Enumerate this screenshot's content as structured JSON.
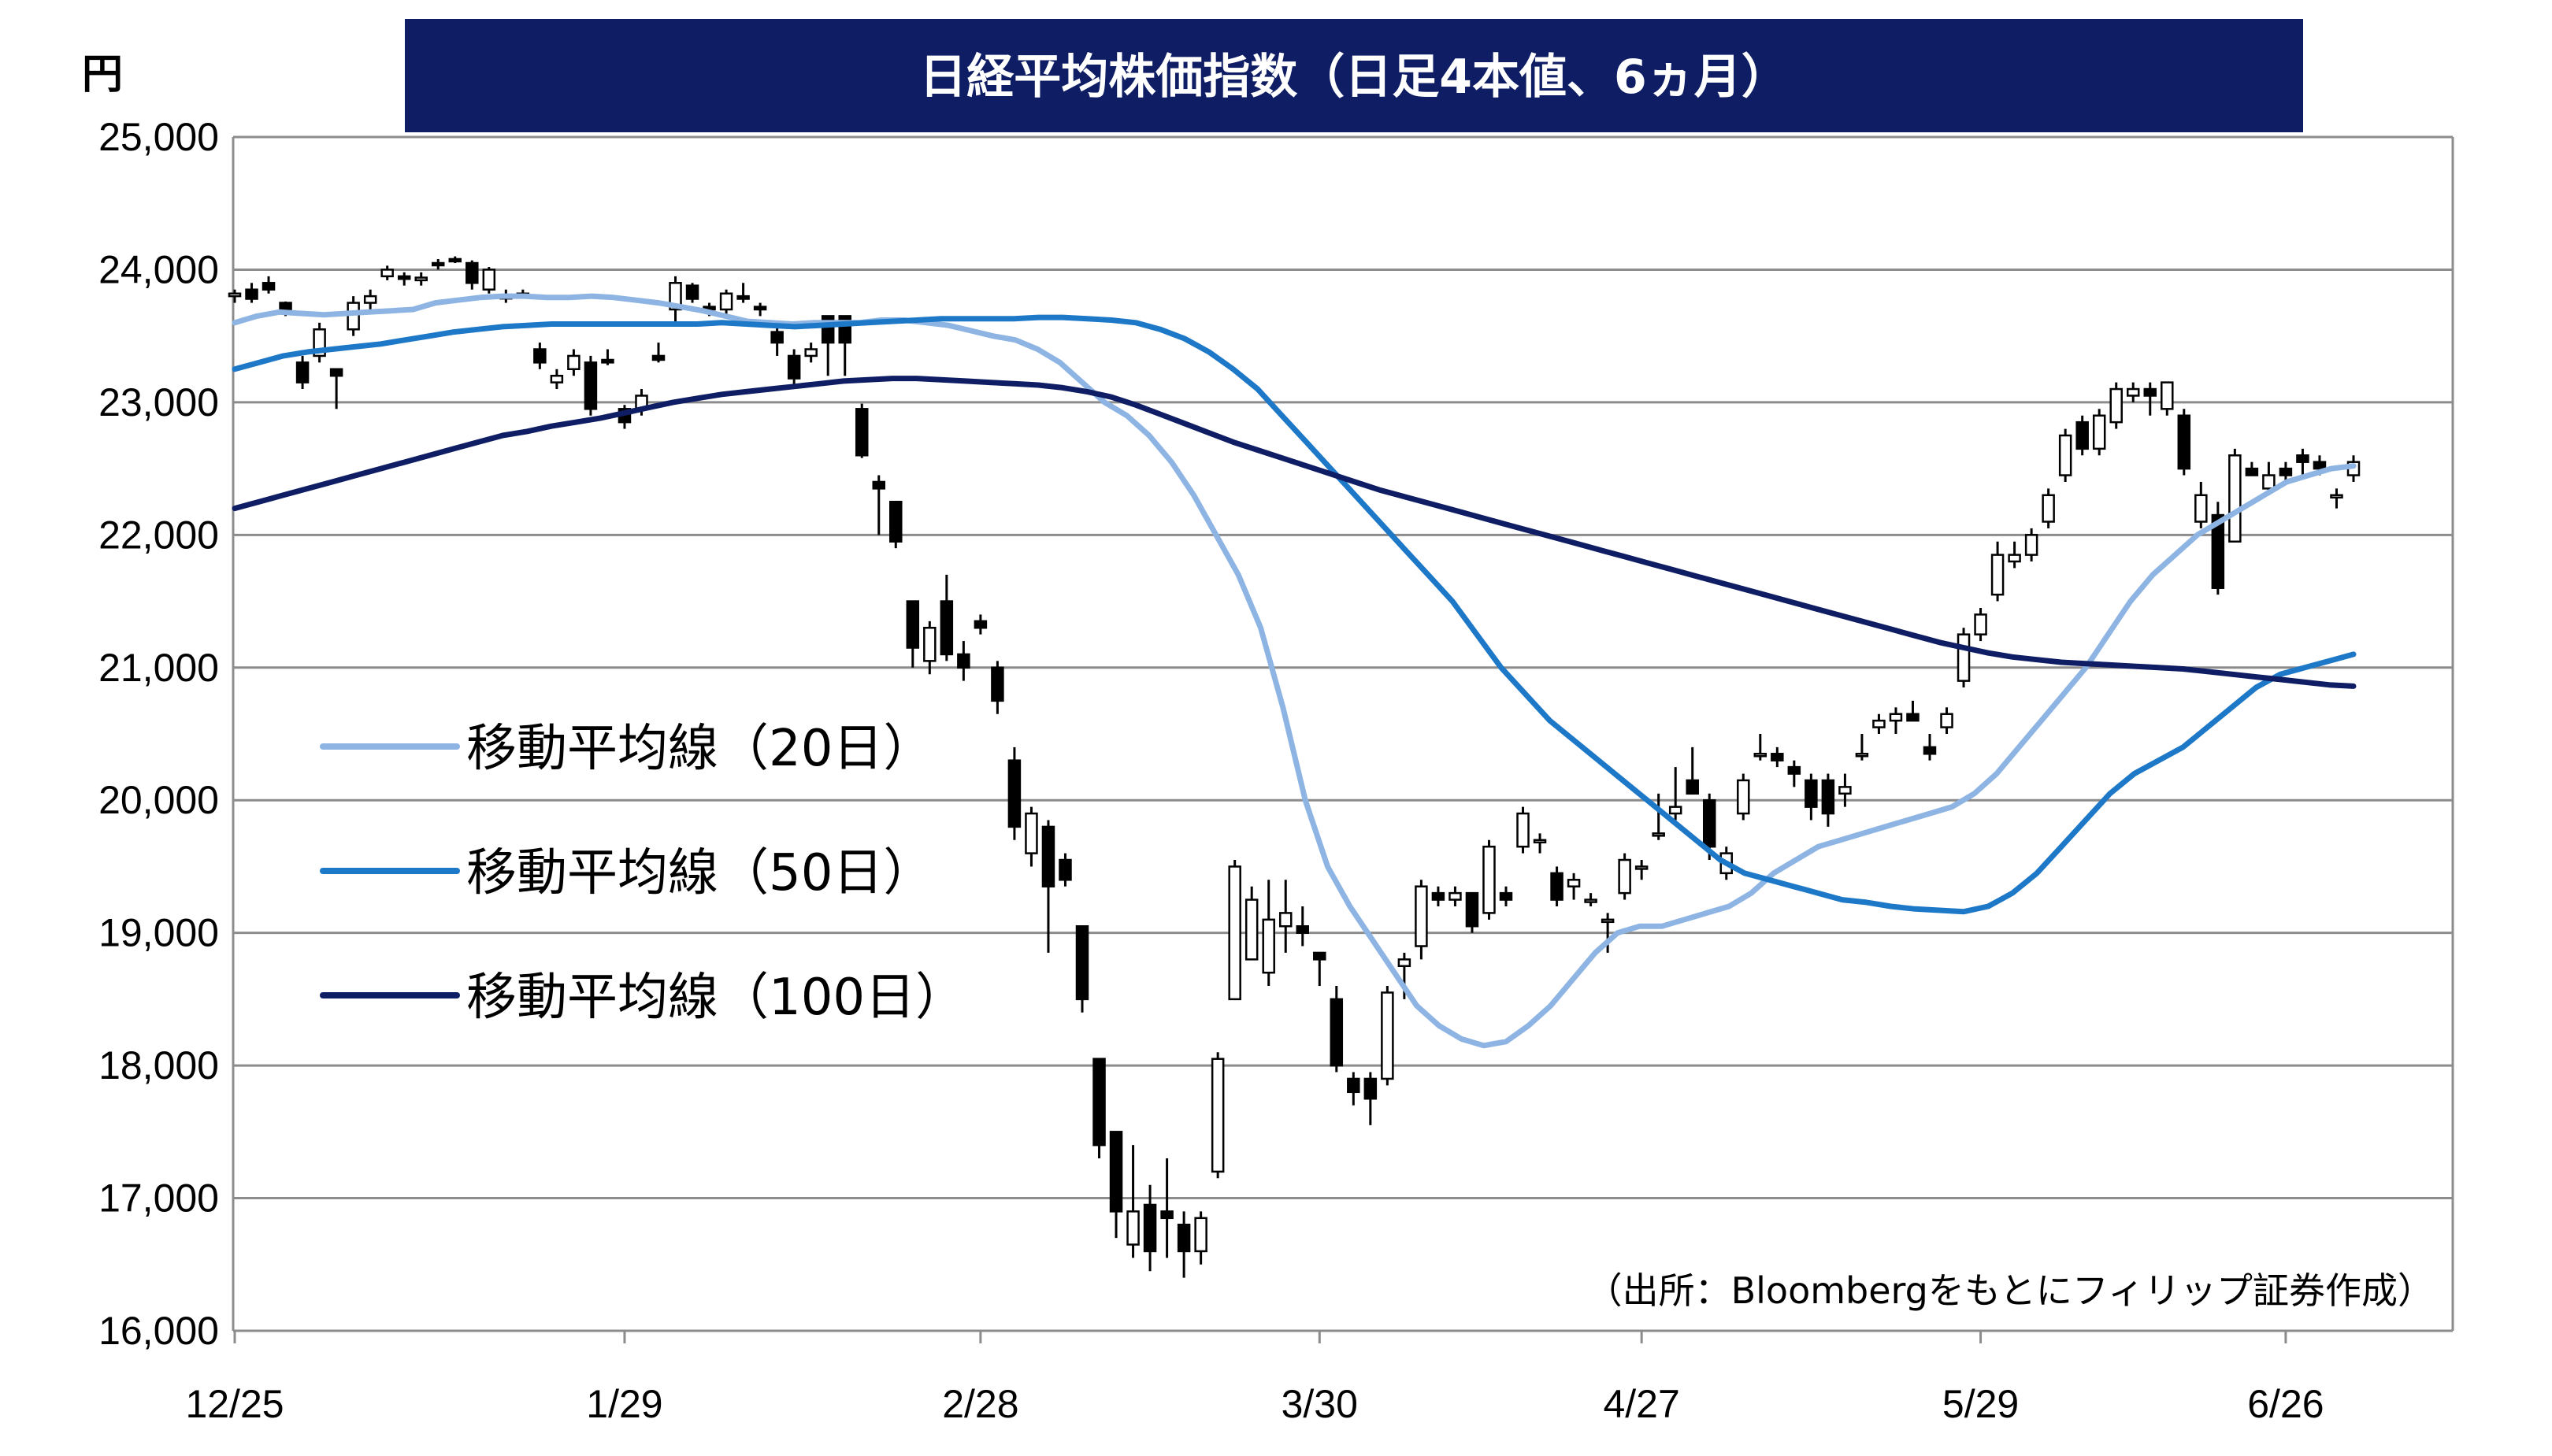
{
  "chart_data": {
    "type": "candlestick",
    "title": "日経平均株価指数（日足4本値、6ヵ月）",
    "unit_label": "円",
    "source": "（出所：Bloombergをもとにフィリップ証券作成）",
    "ylim": [
      16000,
      25000
    ],
    "y_ticks": [
      "25,000",
      "24,000",
      "23,000",
      "22,000",
      "21,000",
      "20,000",
      "19,000",
      "18,000",
      "17,000",
      "16,000"
    ],
    "y_tick_values": [
      25000,
      24000,
      23000,
      22000,
      21000,
      20000,
      19000,
      18000,
      17000,
      16000
    ],
    "x_ticks": [
      "12/25",
      "1/29",
      "2/28",
      "3/30",
      "4/27",
      "5/29",
      "6/26"
    ],
    "x_tick_index": [
      0,
      23,
      44,
      64,
      83,
      103,
      121
    ],
    "grid": true,
    "candle_colors": {
      "up": "#ffffff",
      "down": "#000000",
      "outline": "#000000"
    },
    "candles": [
      [
        23800,
        23850,
        23750,
        23820
      ],
      [
        23850,
        23900,
        23750,
        23780
      ],
      [
        23900,
        23950,
        23820,
        23850
      ],
      [
        23750,
        23760,
        23650,
        23700
      ],
      [
        23300,
        23350,
        23100,
        23150
      ],
      [
        23350,
        23600,
        23300,
        23550
      ],
      [
        23250,
        23250,
        22950,
        23200
      ],
      [
        23550,
        23800,
        23500,
        23750
      ],
      [
        23750,
        23850,
        23700,
        23800
      ],
      [
        23950,
        24030,
        23920,
        24000
      ],
      [
        23950,
        23980,
        23880,
        23930
      ],
      [
        23920,
        23980,
        23880,
        23940
      ],
      [
        24050,
        24080,
        24000,
        24040
      ],
      [
        24080,
        24100,
        24050,
        24070
      ],
      [
        24050,
        24070,
        23850,
        23900
      ],
      [
        23850,
        24020,
        23820,
        24000
      ],
      [
        23800,
        23850,
        23750,
        23800
      ],
      [
        23820,
        23850,
        23780,
        23810
      ],
      [
        23400,
        23450,
        23250,
        23300
      ],
      [
        23150,
        23250,
        23100,
        23200
      ],
      [
        23250,
        23400,
        23200,
        23350
      ],
      [
        23300,
        23350,
        22900,
        22950
      ],
      [
        23320,
        23400,
        23280,
        23300
      ],
      [
        22950,
        22980,
        22800,
        22850
      ],
      [
        22950,
        23100,
        22900,
        23050
      ],
      [
        23350,
        23450,
        23300,
        23320
      ],
      [
        23700,
        23950,
        23600,
        23900
      ],
      [
        23880,
        23900,
        23750,
        23780
      ],
      [
        23720,
        23750,
        23650,
        23700
      ],
      [
        23700,
        23850,
        23650,
        23820
      ],
      [
        23800,
        23900,
        23750,
        23780
      ],
      [
        23720,
        23750,
        23650,
        23700
      ],
      [
        23530,
        23600,
        23350,
        23450
      ],
      [
        23350,
        23400,
        23100,
        23180
      ],
      [
        23350,
        23450,
        23300,
        23400
      ],
      [
        23650,
        23650,
        23200,
        23450
      ],
      [
        23650,
        23650,
        23200,
        23450
      ],
      [
        22950,
        22990,
        22580,
        22600
      ],
      [
        22400,
        22450,
        22000,
        22350
      ],
      [
        22250,
        22250,
        21900,
        21950
      ],
      [
        21500,
        21500,
        21000,
        21150
      ],
      [
        21050,
        21350,
        20950,
        21300
      ],
      [
        21500,
        21700,
        21050,
        21100
      ],
      [
        21100,
        21200,
        20900,
        21000
      ],
      [
        21350,
        21400,
        21250,
        21300
      ],
      [
        21000,
        21050,
        20650,
        20750
      ],
      [
        20300,
        20400,
        19700,
        19800
      ],
      [
        19600,
        19950,
        19500,
        19900
      ],
      [
        19800,
        19850,
        18850,
        19350
      ],
      [
        19550,
        19600,
        19350,
        19400
      ],
      [
        19050,
        19050,
        18400,
        18500
      ],
      [
        18050,
        18050,
        17300,
        17400
      ],
      [
        17500,
        17500,
        16700,
        16900
      ],
      [
        16650,
        17400,
        16550,
        16900
      ],
      [
        16950,
        17100,
        16450,
        16600
      ],
      [
        16900,
        17300,
        16550,
        16850
      ],
      [
        16800,
        16900,
        16400,
        16600
      ],
      [
        16600,
        16900,
        16500,
        16850
      ],
      [
        17200,
        18100,
        17150,
        18050
      ],
      [
        18500,
        19550,
        18500,
        19500
      ],
      [
        18800,
        19350,
        18800,
        19250
      ],
      [
        18700,
        19400,
        18600,
        19100
      ],
      [
        19050,
        19400,
        18850,
        19150
      ],
      [
        19050,
        19200,
        18900,
        19000
      ],
      [
        18850,
        18850,
        18600,
        18800
      ],
      [
        18500,
        18600,
        17950,
        18000
      ],
      [
        17900,
        17950,
        17700,
        17800
      ],
      [
        17900,
        17950,
        17550,
        17750
      ],
      [
        17900,
        18600,
        17850,
        18550
      ],
      [
        18750,
        18850,
        18500,
        18800
      ],
      [
        18900,
        19400,
        18800,
        19350
      ],
      [
        19300,
        19350,
        19200,
        19250
      ],
      [
        19250,
        19350,
        19200,
        19300
      ],
      [
        19300,
        19300,
        19000,
        19050
      ],
      [
        19150,
        19700,
        19100,
        19650
      ],
      [
        19300,
        19350,
        19200,
        19250
      ],
      [
        19650,
        19950,
        19600,
        19900
      ],
      [
        19700,
        19750,
        19600,
        19700
      ],
      [
        19450,
        19500,
        19200,
        19250
      ],
      [
        19350,
        19450,
        19250,
        19400
      ],
      [
        19250,
        19300,
        19200,
        19250
      ],
      [
        19100,
        19150,
        18850,
        19100
      ],
      [
        19300,
        19600,
        19250,
        19550
      ],
      [
        19500,
        19550,
        19400,
        19500
      ],
      [
        19750,
        20050,
        19700,
        19750
      ],
      [
        19900,
        20250,
        19850,
        19950
      ],
      [
        20150,
        20400,
        20100,
        20050
      ],
      [
        20000,
        20050,
        19550,
        19650
      ],
      [
        19450,
        19650,
        19400,
        19600
      ],
      [
        19900,
        20200,
        19850,
        20150
      ],
      [
        20350,
        20500,
        20300,
        20350
      ],
      [
        20350,
        20400,
        20250,
        20300
      ],
      [
        20250,
        20300,
        20100,
        20200
      ],
      [
        20150,
        20200,
        19850,
        19950
      ],
      [
        20150,
        20200,
        19800,
        19900
      ],
      [
        20050,
        20200,
        19950,
        20100
      ],
      [
        20350,
        20500,
        20300,
        20350
      ],
      [
        20550,
        20650,
        20500,
        20600
      ],
      [
        20600,
        20700,
        20500,
        20650
      ],
      [
        20650,
        20750,
        20600,
        20600
      ],
      [
        20400,
        20500,
        20300,
        20350
      ],
      [
        20550,
        20700,
        20500,
        20650
      ],
      [
        20900,
        21300,
        20850,
        21250
      ],
      [
        21250,
        21450,
        21200,
        21400
      ],
      [
        21550,
        21950,
        21500,
        21850
      ],
      [
        21800,
        21950,
        21750,
        21850
      ],
      [
        21850,
        22050,
        21800,
        22000
      ],
      [
        22100,
        22350,
        22050,
        22300
      ],
      [
        22450,
        22800,
        22400,
        22750
      ],
      [
        22850,
        22900,
        22600,
        22650
      ],
      [
        22650,
        22950,
        22600,
        22900
      ],
      [
        22850,
        23150,
        22800,
        23100
      ],
      [
        23050,
        23150,
        23000,
        23100
      ],
      [
        23100,
        23150,
        22900,
        23050
      ],
      [
        22950,
        23150,
        22900,
        23150
      ],
      [
        22900,
        22950,
        22450,
        22500
      ],
      [
        22100,
        22400,
        22050,
        22300
      ],
      [
        22150,
        22250,
        21550,
        21600
      ],
      [
        21950,
        22650,
        21950,
        22600
      ],
      [
        22500,
        22550,
        22450,
        22450
      ],
      [
        22350,
        22550,
        22300,
        22450
      ],
      [
        22500,
        22550,
        22400,
        22450
      ],
      [
        22600,
        22650,
        22450,
        22550
      ],
      [
        22550,
        22600,
        22450,
        22500
      ],
      [
        22300,
        22350,
        22200,
        22300
      ],
      [
        22450,
        22600,
        22400,
        22550
      ]
    ],
    "series": [
      {
        "name": "移動平均線（20日）",
        "color": "#8db4e2",
        "values": [
          23600,
          23650,
          23680,
          23670,
          23660,
          23670,
          23680,
          23690,
          23700,
          23750,
          23770,
          23790,
          23800,
          23800,
          23790,
          23790,
          23800,
          23790,
          23770,
          23750,
          23720,
          23690,
          23650,
          23610,
          23600,
          23590,
          23600,
          23600,
          23600,
          23620,
          23620,
          23600,
          23580,
          23540,
          23500,
          23470,
          23400,
          23300,
          23150,
          23000,
          22900,
          22750,
          22550,
          22300,
          22000,
          21700,
          21300,
          20700,
          20000,
          19500,
          19200,
          18950,
          18700,
          18450,
          18300,
          18200,
          18150,
          18180,
          18300,
          18450,
          18650,
          18850,
          19000,
          19050,
          19050,
          19100,
          19150,
          19200,
          19300,
          19450,
          19550,
          19650,
          19700,
          19750,
          19800,
          19850,
          19900,
          19950,
          20050,
          20200,
          20400,
          20600,
          20800,
          21000,
          21250,
          21500,
          21700,
          21850,
          22000,
          22100,
          22200,
          22300,
          22400,
          22450,
          22500,
          22520
        ]
      },
      {
        "name": "移動平均線（50日）",
        "color": "#1e78c8",
        "values": [
          23250,
          23300,
          23350,
          23380,
          23400,
          23420,
          23440,
          23470,
          23500,
          23530,
          23550,
          23570,
          23580,
          23590,
          23590,
          23590,
          23590,
          23590,
          23590,
          23590,
          23600,
          23590,
          23580,
          23570,
          23580,
          23590,
          23600,
          23610,
          23620,
          23630,
          23630,
          23630,
          23630,
          23640,
          23640,
          23630,
          23620,
          23600,
          23550,
          23480,
          23380,
          23250,
          23100,
          22900,
          22700,
          22500,
          22300,
          22100,
          21900,
          21700,
          21500,
          21250,
          21000,
          20800,
          20600,
          20450,
          20300,
          20150,
          20000,
          19850,
          19700,
          19550,
          19450,
          19400,
          19350,
          19300,
          19250,
          19230,
          19200,
          19180,
          19170,
          19160,
          19200,
          19300,
          19450,
          19650,
          19850,
          20050,
          20200,
          20300,
          20400,
          20550,
          20700,
          20850,
          20950,
          21000,
          21050,
          21100
        ]
      },
      {
        "name": "移動平均線（100日）",
        "color": "#0f1e64",
        "values": [
          22200,
          22250,
          22300,
          22350,
          22400,
          22450,
          22500,
          22550,
          22600,
          22650,
          22700,
          22750,
          22780,
          22820,
          22850,
          22880,
          22920,
          22960,
          23000,
          23030,
          23060,
          23080,
          23100,
          23120,
          23140,
          23160,
          23170,
          23180,
          23180,
          23170,
          23160,
          23150,
          23140,
          23130,
          23110,
          23080,
          23040,
          22980,
          22910,
          22840,
          22770,
          22700,
          22640,
          22580,
          22520,
          22460,
          22400,
          22340,
          22290,
          22240,
          22190,
          22140,
          22090,
          22040,
          21990,
          21940,
          21890,
          21840,
          21790,
          21740,
          21690,
          21640,
          21590,
          21540,
          21490,
          21440,
          21390,
          21340,
          21290,
          21240,
          21190,
          21150,
          21110,
          21080,
          21060,
          21040,
          21030,
          21020,
          21010,
          21000,
          20990,
          20970,
          20950,
          20930,
          20910,
          20890,
          20870,
          20860
        ]
      }
    ]
  }
}
